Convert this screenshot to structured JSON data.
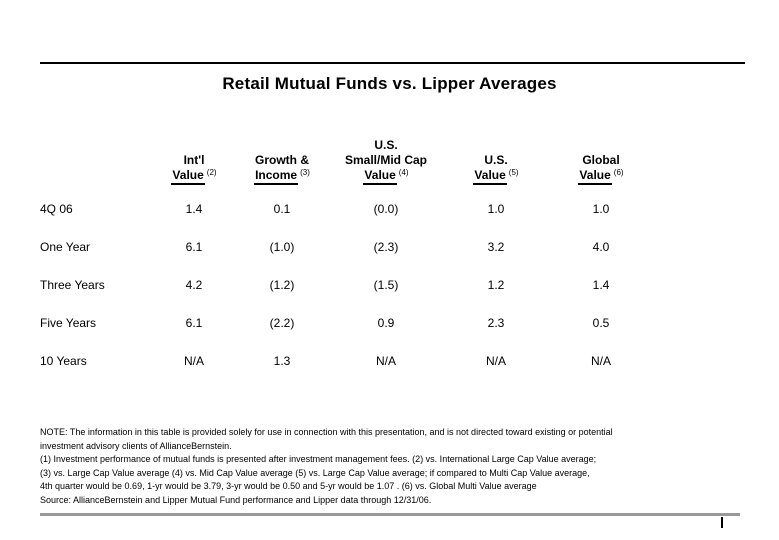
{
  "page": {
    "title": "Retail Mutual Funds vs. Lipper Averages"
  },
  "table": {
    "row_header_label": "",
    "columns": [
      {
        "lines": [
          "Int'l"
        ],
        "underlined": "Value",
        "footnote_ref": "(2)"
      },
      {
        "lines": [
          "Growth &"
        ],
        "underlined": "Income",
        "footnote_ref": "(3)"
      },
      {
        "lines": [
          "U.S.",
          "Small/Mid Cap"
        ],
        "underlined": "Value",
        "footnote_ref": "(4)"
      },
      {
        "lines": [
          "U.S."
        ],
        "underlined": "Value",
        "footnote_ref": "(5)"
      },
      {
        "lines": [
          "Global"
        ],
        "underlined": "Value",
        "footnote_ref": "(6)"
      }
    ],
    "rows": [
      {
        "label": "4Q 06",
        "values": [
          "1.4",
          "0.1",
          "(0.0)",
          "1.0",
          "1.0"
        ]
      },
      {
        "label": "One Year",
        "values": [
          "6.1",
          "(1.0)",
          "(2.3)",
          "3.2",
          "4.0"
        ]
      },
      {
        "label": "Three Years",
        "values": [
          "4.2",
          "(1.2)",
          "(1.5)",
          "1.2",
          "1.4"
        ]
      },
      {
        "label": "Five Years",
        "values": [
          "6.1",
          "(2.2)",
          "0.9",
          "2.3",
          "0.5"
        ]
      },
      {
        "label": "10 Years",
        "values": [
          "N/A",
          "1.3",
          "N/A",
          "N/A",
          "N/A"
        ]
      }
    ]
  },
  "footnotes": [
    "NOTE: The information in this table is provided solely for use in connection with this presentation, and is not directed toward existing or potential",
    "investment advisory clients of AllianceBernstein.",
    "(1) Investment performance of mutual funds is presented after investment management fees. (2) vs. International Large Cap Value average;",
    "(3) vs. Large Cap Value average (4) vs. Mid Cap Value average (5) vs. Large Cap Value average; if compared to Multi Cap Value average,",
    "4th quarter would be 0.69, 1-yr would be 3.79, 3-yr would be 0.50 and 5-yr would be 1.07 . (6) vs. Global Multi Value average",
    "Source: AllianceBernstein and Lipper Mutual Fund performance and Lipper data through 12/31/06."
  ],
  "colors": {
    "background": "#ffffff",
    "text": "#000000",
    "rule_top": "#000000",
    "rule_bottom": "#999999"
  }
}
